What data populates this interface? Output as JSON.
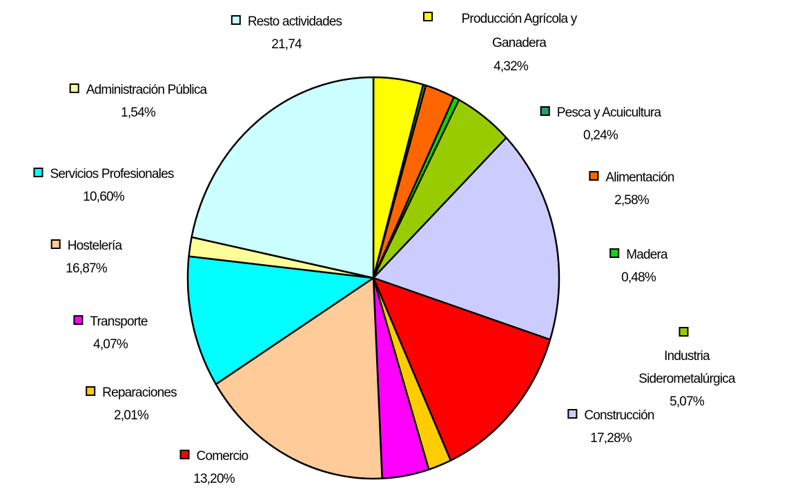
{
  "chart_data": {
    "type": "pie",
    "labels": [
      "Producción Agrícola y Ganadera",
      "Pesca y Acuicultura",
      "Alimentación",
      "Madera",
      "Industria Siderometalúrgica",
      "Construcción",
      "Comercio",
      "Reparaciones",
      "Transporte",
      "Hostelería",
      "Servicios Profesionales",
      "Administración Pública",
      "Resto actividades"
    ],
    "values": [
      4.32,
      0.24,
      2.58,
      0.48,
      5.07,
      17.28,
      13.2,
      2.01,
      4.07,
      16.87,
      10.6,
      1.54,
      21.74
    ],
    "value_labels": [
      "4,32%",
      "0,24%",
      "2,58%",
      "0,48%",
      "5,07%",
      "17,28%",
      "13,20%",
      "2,01%",
      "4,07%",
      "16,87%",
      "10,60%",
      "1,54%",
      "21,74"
    ],
    "colors": [
      "#ffff00",
      "#339966",
      "#ff6600",
      "#00dd00",
      "#99cc00",
      "#ccccff",
      "#ff0000",
      "#ffcc00",
      "#ff00ff",
      "#ffcc99",
      "#00ffff",
      "#ffff99",
      "#ccffff"
    ]
  }
}
